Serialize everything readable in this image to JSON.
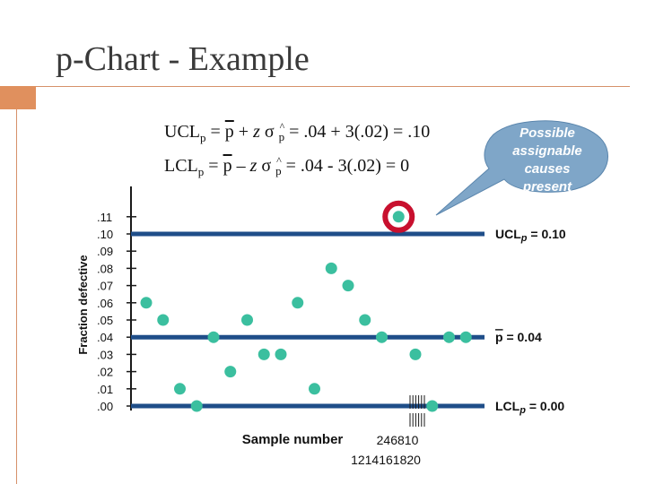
{
  "slide": {
    "title": "p-Chart - Example"
  },
  "formulas": {
    "ucl_lhs": "UCL",
    "ucl_sub": "p",
    "ucl_rest": "= .04 + 3(.02) = .10",
    "lcl_lhs": "LCL",
    "lcl_sub": "p",
    "lcl_rest": "= .04 - 3(.02) = 0"
  },
  "callout": {
    "lines": [
      "Possible",
      "assignable",
      "causes",
      "present"
    ],
    "fill": "#7fa6c8"
  },
  "colors": {
    "point": "#3bbf9f",
    "line": "#1f4e89",
    "highlight": "#c8102e",
    "accent": "#e0905e"
  },
  "chart_data": {
    "type": "scatter",
    "xlabel": "Sample number",
    "ylabel": "Fraction defective",
    "ylim": [
      0,
      0.11
    ],
    "y_tick_labels": [
      ".11",
      ".10",
      ".09",
      ".08",
      ".07",
      ".06",
      ".05",
      ".04",
      ".03",
      ".02",
      ".01",
      ".00"
    ],
    "x_tick_labels_line1": "246810",
    "x_tick_labels_line2": "1214161820",
    "x": [
      1,
      2,
      3,
      4,
      5,
      6,
      7,
      8,
      9,
      10,
      11,
      12,
      13,
      14,
      15,
      16,
      17,
      18,
      19,
      20
    ],
    "y": [
      0.06,
      0.05,
      0.01,
      0.0,
      0.04,
      0.02,
      0.05,
      0.03,
      0.03,
      0.06,
      0.01,
      0.08,
      0.07,
      0.05,
      0.04,
      0.11,
      0.03,
      0.0,
      0.04,
      0.04
    ],
    "control_lines": [
      {
        "name": "UCL",
        "sub": "p",
        "suffix": " = 0.10",
        "value": 0.1
      },
      {
        "name": "p",
        "suffix": " =  0.04",
        "value": 0.04,
        "overline": true
      },
      {
        "name": "LCL",
        "sub": "p",
        "suffix": " = 0.00",
        "value": 0.0
      }
    ],
    "highlighted_sample": 16
  }
}
